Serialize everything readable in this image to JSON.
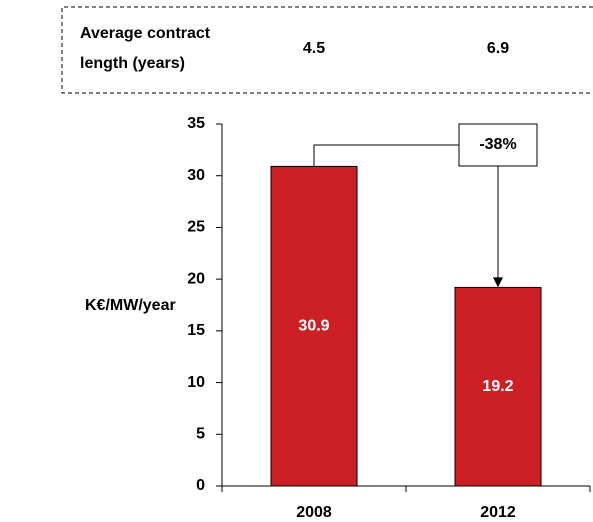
{
  "chart_data": {
    "type": "bar",
    "header": {
      "label": [
        "Average contract",
        "length (years)"
      ],
      "values": [
        4.5,
        6.9
      ]
    },
    "ylabel": "K€/MW/year",
    "categories": [
      "2008",
      "2012"
    ],
    "values": [
      30.9,
      19.2
    ],
    "color": "#cc2027",
    "ylim": [
      0,
      35
    ],
    "yticks": [
      0,
      5,
      10,
      15,
      20,
      25,
      30,
      35
    ],
    "annotation": "-38%"
  }
}
